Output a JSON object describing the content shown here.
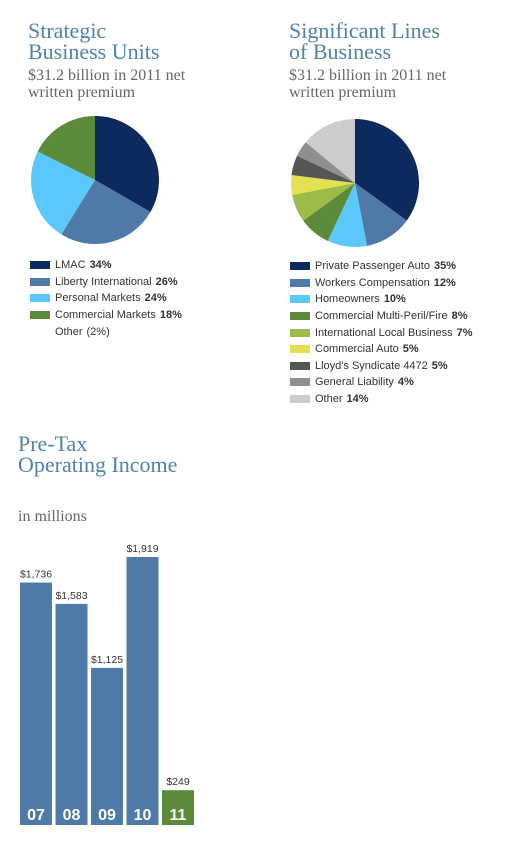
{
  "charts": {
    "sbu": {
      "title": "Strategic\nBusiness Units",
      "subtitle": "$31.2 billion in 2011 net\nwritten premium"
    },
    "slob": {
      "title": "Significant Lines\nof Business",
      "subtitle": "$31.2 billion in 2011 net\nwritten premium"
    },
    "ptoi": {
      "title": "Pre-Tax\nOperating Income",
      "subtitle": "in millions"
    }
  },
  "chart_data": [
    {
      "type": "pie",
      "title": "Strategic Business Units",
      "subtitle": "$31.2 billion in 2011 net written premium",
      "slices": [
        {
          "label": "LMAC",
          "value": 34,
          "display": "34%",
          "color": "#0c2a5e"
        },
        {
          "label": "Liberty International",
          "value": 26,
          "display": "26%",
          "color": "#4f7aa8"
        },
        {
          "label": "Personal Markets",
          "value": 24,
          "display": "24%",
          "color": "#5bc8fb"
        },
        {
          "label": "Commercial Markets",
          "value": 18,
          "display": "18%",
          "color": "#5b8b3a"
        },
        {
          "label": "Other",
          "value": 2,
          "display": "(2%)",
          "color": null
        }
      ]
    },
    {
      "type": "pie",
      "title": "Significant Lines of Business",
      "subtitle": "$31.2 billion in 2011 net written premium",
      "slices": [
        {
          "label": "Private Passenger Auto",
          "value": 35,
          "display": "35%",
          "color": "#0c2a5e"
        },
        {
          "label": "Workers Compensation",
          "value": 12,
          "display": "12%",
          "color": "#4f7aa8"
        },
        {
          "label": "Homeowners",
          "value": 10,
          "display": "10%",
          "color": "#5bc8fb"
        },
        {
          "label": "Commercial Multi-Peril/Fire",
          "value": 8,
          "display": "8%",
          "color": "#5b8b3a"
        },
        {
          "label": "International Local Business",
          "value": 7,
          "display": "7%",
          "color": "#9cbb48"
        },
        {
          "label": "Commercial Auto",
          "value": 5,
          "display": "5%",
          "color": "#e3e052"
        },
        {
          "label": "Lloyd's Syndicate 4472",
          "value": 5,
          "display": "5%",
          "color": "#555555"
        },
        {
          "label": "General Liability",
          "value": 4,
          "display": "4%",
          "color": "#8f8f8f"
        },
        {
          "label": "Other",
          "value": 14,
          "display": "14%",
          "color": "#cccccc"
        }
      ]
    },
    {
      "type": "bar",
      "title": "Pre-Tax Operating Income",
      "subtitle": "in millions",
      "categories": [
        "07",
        "08",
        "09",
        "10",
        "11"
      ],
      "values": [
        1736,
        1583,
        1125,
        1919,
        249
      ],
      "labels": [
        "$1,736",
        "$1,583",
        "$1,125",
        "$1,919",
        "$249"
      ],
      "colors": [
        "#4f7aa8",
        "#4f7aa8",
        "#4f7aa8",
        "#4f7aa8",
        "#5b8b3a"
      ],
      "ylim": [
        0,
        1919
      ]
    }
  ]
}
